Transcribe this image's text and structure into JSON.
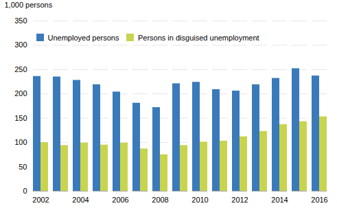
{
  "chart_data": {
    "type": "bar",
    "ylabel": "1,000 persons",
    "categories": [
      "2002",
      null,
      "2004",
      null,
      "2006",
      null,
      "2008",
      null,
      "2010",
      null,
      "2012",
      null,
      "2014",
      null,
      "2016"
    ],
    "series": [
      {
        "name": "Unemployed persons",
        "color": "#3a7aba",
        "values": [
          236,
          235,
          228,
          219,
          204,
          181,
          172,
          221,
          224,
          209,
          206,
          219,
          232,
          252,
          237
        ]
      },
      {
        "name": "Persons in disguised unemployment",
        "color": "#c8d44e",
        "values": [
          100,
          94,
          99,
          95,
          99,
          87,
          75,
          94,
          101,
          103,
          112,
          123,
          137,
          143,
          153
        ]
      }
    ],
    "ylim": [
      0,
      350
    ],
    "yticks": [
      0,
      50,
      100,
      150,
      200,
      250,
      300,
      350
    ],
    "grid": true,
    "legend": "upper left"
  }
}
